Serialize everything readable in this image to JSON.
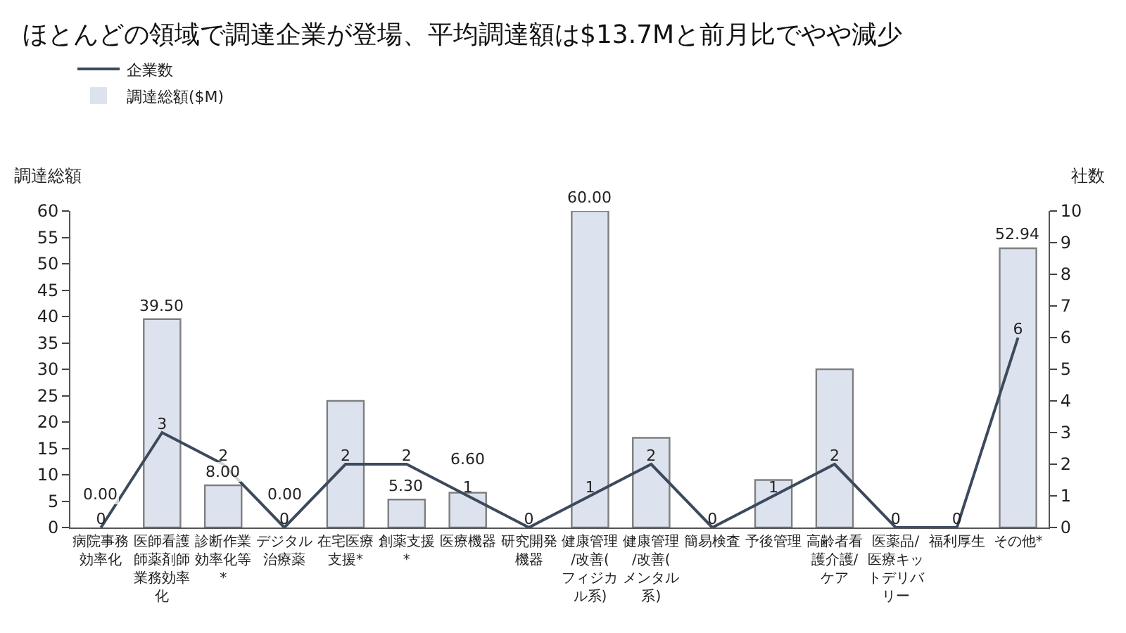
{
  "chart_data": {
    "type": "bar",
    "title": "ほとんどの領域で調達企業が登場、平均調達額は$13.7Mと前月比でやや減少",
    "categories": [
      "病院事務効率化",
      "医師看護師薬剤師業務効率化",
      "診断作業効率化等*",
      "デジタル治療薬",
      "在宅医療支援*",
      "創薬支援*",
      "医療機器",
      "研究開発機器",
      "健康管理/改善(フィジカル系)",
      "健康管理/改善(メンタル系)",
      "簡易検査",
      "予後管理",
      "高齢者看護介護/ケア",
      "医薬品/医療キットデリバリー",
      "福利厚生",
      "その他*"
    ],
    "ylabel": "調達総額",
    "y2label": "社数",
    "series": [
      {
        "name": "調達総額($M)",
        "color": "#dde3ee",
        "values": [
          0,
          39.5,
          8,
          0,
          24,
          5.3,
          6.6,
          0,
          60,
          17,
          0,
          9,
          30,
          0,
          0,
          52.94
        ],
        "value_labels": [
          "0.00",
          "39.50",
          "8.00",
          "0.00",
          null,
          "5.30",
          "6.60",
          null,
          "60.00",
          null,
          null,
          null,
          null,
          null,
          null,
          "52.94"
        ]
      },
      {
        "name": "企業数",
        "type": "line",
        "axis": "y2",
        "color": "#3d4a5c",
        "values": [
          0,
          3,
          2,
          0,
          2,
          2,
          1,
          0,
          1,
          2,
          0,
          1,
          2,
          0,
          0,
          6
        ],
        "value_labels": [
          "0",
          "3",
          "2",
          "0",
          "2",
          "2",
          "1",
          "0",
          "1",
          "2",
          "0",
          "1",
          "2",
          "0",
          "0",
          "6"
        ]
      }
    ],
    "ylim": [
      0,
      60
    ],
    "yticks": [
      0,
      5,
      10,
      15,
      20,
      25,
      30,
      35,
      40,
      45,
      50,
      55,
      60
    ],
    "y2lim": [
      0,
      10
    ],
    "y2ticks": [
      0,
      1,
      2,
      3,
      4,
      5,
      6,
      7,
      8,
      9,
      10
    ],
    "legend": "top left",
    "marker": "none",
    "line_style": "solid"
  }
}
